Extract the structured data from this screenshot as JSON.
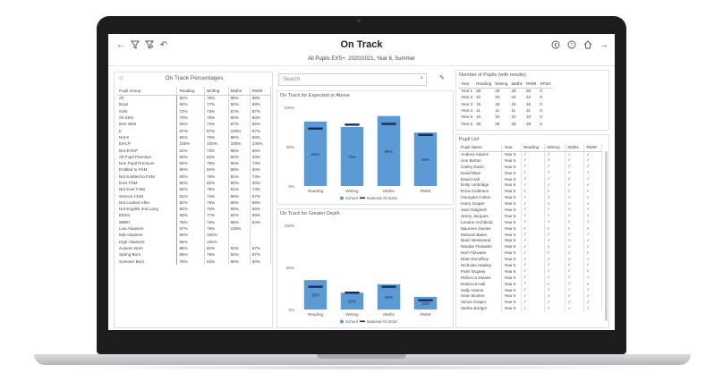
{
  "header": {
    "title": "On Track",
    "subtitle": "All Pupils EXS+, 2020/2021, Year 6, Summer",
    "icons_left": [
      "back-arrow-icon",
      "filter-icon",
      "filter-clear-icon",
      "undo-icon"
    ],
    "icons_right": [
      "previous-icon",
      "help-icon",
      "home-icon",
      "forward-arrow-icon"
    ]
  },
  "on_track": {
    "title": "On Track Percentages",
    "columns": [
      "Pupil Group",
      "Reading",
      "Writing",
      "Maths",
      "RWM"
    ],
    "rows": [
      [
        "All",
        "82%",
        "75%",
        "89%",
        "68%"
      ],
      [
        "Boys",
        "92%",
        "77%",
        "92%",
        "69%"
      ],
      [
        "Girls",
        "73%",
        "73%",
        "87%",
        "67%"
      ],
      [
        "All SEN",
        "70%",
        "70%",
        "80%",
        "60%"
      ],
      [
        "Non SEN",
        "83%",
        "74%",
        "87%",
        "65%"
      ],
      [
        "K",
        "67%",
        "67%",
        "100%",
        "67%"
      ],
      [
        "Not K",
        "84%",
        "76%",
        "88%",
        "68%"
      ],
      [
        "EHCP",
        "100%",
        "100%",
        "100%",
        "100%"
      ],
      [
        "Not EHCP",
        "81%",
        "73%",
        "88%",
        "65%"
      ],
      [
        "All Pupil Premium",
        "80%",
        "60%",
        "80%",
        "40%"
      ],
      [
        "Non Pupil Premium",
        "83%",
        "78%",
        "90%",
        "73%"
      ],
      [
        "Entitled to FSM",
        "80%",
        "60%",
        "80%",
        "40%"
      ],
      [
        "Not Entitled to FSM",
        "83%",
        "78%",
        "91%",
        "73%"
      ],
      [
        "Ever FSM",
        "80%",
        "60%",
        "80%",
        "40%"
      ],
      [
        "Not Ever FSM",
        "83%",
        "78%",
        "91%",
        "73%"
      ],
      [
        "Service Child",
        "81%",
        "74%",
        "89%",
        "67%"
      ],
      [
        "Not Looked After",
        "82%",
        "75%",
        "89%",
        "68%"
      ],
      [
        "Not English 2nd Lang",
        "82%",
        "75%",
        "89%",
        "68%"
      ],
      [
        "Ethnic",
        "93%",
        "77%",
        "92%",
        "69%"
      ],
      [
        "WBRI",
        "75%",
        "75%",
        "88%",
        "63%"
      ],
      [
        "Low Attainers",
        "67%",
        "78%",
        "100%",
        ""
      ],
      [
        "Mid Attainers",
        "95%",
        "100%",
        "",
        ""
      ],
      [
        "High Attainers",
        "86%",
        "100%",
        "",
        ""
      ],
      [
        "Autumn Born",
        "88%",
        "82%",
        "93%",
        "67%"
      ],
      [
        "Spring Born",
        "86%",
        "79%",
        "93%",
        "67%"
      ],
      [
        "Summer Born",
        "75%",
        "63%",
        "88%",
        "60%"
      ]
    ]
  },
  "search": {
    "placeholder": "Search"
  },
  "chart1": {
    "title": "On Track for Expected or Above",
    "yticks": [
      "100%",
      "50%",
      "0%"
    ],
    "legend_school": "School",
    "legend_national": "National All 2019"
  },
  "chart2": {
    "title": "On Track for Greater Depth",
    "yticks": [
      "100%",
      "50%",
      "0%"
    ],
    "legend_school": "School",
    "legend_national": "National All 2019"
  },
  "chart_data": [
    {
      "type": "bar",
      "title": "On Track for Expected or Above",
      "categories": [
        "Reading",
        "Writing",
        "Maths",
        "RWM"
      ],
      "series": [
        {
          "name": "School",
          "values": [
            82,
            75,
            89,
            68
          ]
        },
        {
          "name": "National All 2019",
          "values": [
            73,
            78,
            79,
            65
          ]
        }
      ],
      "data_labels": [
        "82%",
        "75%",
        "89%",
        "68%"
      ],
      "ylim": [
        0,
        100
      ],
      "colors": {
        "school": "#5b9bd5",
        "national": "#1f2a5a"
      }
    },
    {
      "type": "bar",
      "title": "On Track for Greater Depth",
      "categories": [
        "Reading",
        "Writing",
        "Maths",
        "RWM"
      ],
      "series": [
        {
          "name": "School",
          "values": [
            35,
            20,
            30,
            15
          ]
        },
        {
          "name": "National All 2019",
          "values": [
            27,
            20,
            27,
            11
          ]
        }
      ],
      "data_labels": [
        "35%",
        "20%",
        "30%",
        "15%"
      ],
      "ylim": [
        0,
        100
      ],
      "colors": {
        "school": "#5b9bd5",
        "national": "#1f2a5a"
      }
    }
  ],
  "num_pupils": {
    "title": "Number of Pupils (with results)",
    "columns": [
      "Year",
      "Reading",
      "Writing",
      "Maths",
      "RWM",
      "SPaG"
    ],
    "rows": [
      [
        "Year 1",
        "28",
        "28",
        "28",
        "28",
        "0"
      ],
      [
        "Year 2",
        "22",
        "22",
        "22",
        "22",
        "0"
      ],
      [
        "Year 3",
        "16",
        "16",
        "16",
        "16",
        "0"
      ],
      [
        "Year 4",
        "11",
        "11",
        "11",
        "11",
        "0"
      ],
      [
        "Year 5",
        "10",
        "10",
        "10",
        "10",
        "0"
      ],
      [
        "Year 6",
        "28",
        "28",
        "28",
        "28",
        "0"
      ]
    ]
  },
  "pupil_list": {
    "title": "Pupil List",
    "columns": [
      "Pupil Name",
      "Year",
      "Reading",
      "Writing",
      "Maths",
      "RWM"
    ],
    "rows": [
      [
        "Andrew Adams",
        "Year 6",
        "✓",
        "✓",
        "✓",
        "✓"
      ],
      [
        "Ann Button",
        "Year 6",
        "✓",
        "✓",
        "✓",
        "✓"
      ],
      [
        "Carley Dutto",
        "Year 6",
        "✓",
        "✓",
        "✓",
        "✓"
      ],
      [
        "David Blair",
        "Year 6",
        "✓",
        "✓",
        "✓",
        "✓"
      ],
      [
        "David Hall",
        "Year 6",
        "✓",
        "✓",
        "✓",
        "✓"
      ],
      [
        "Dolly Umbridge",
        "Year 6",
        "✓",
        "✓",
        "✓",
        "✓"
      ],
      [
        "Erica Anderson",
        "Year 6",
        "×",
        "×",
        "×",
        "×"
      ],
      [
        "Georgina Calton",
        "Year 6",
        "✓",
        "✓",
        "✓",
        "✓"
      ],
      [
        "Harry Draper",
        "Year 6",
        "✓",
        "✓",
        "✓",
        "✓"
      ],
      [
        "Jane Dalglesh",
        "Year 6",
        "✓",
        "✓",
        "✓",
        "✓"
      ],
      [
        "Jenny Jacques",
        "Year 6",
        "✓",
        "✓",
        "✓",
        "✓"
      ],
      [
        "Leeann Archibold",
        "Year 6",
        "✓",
        "✓",
        "✓",
        "✓"
      ],
      [
        "Maureen Davies",
        "Year 6",
        "×",
        "×",
        "×",
        "×"
      ],
      [
        "Melanie Baker",
        "Year 6",
        "✓",
        "✓",
        "✓",
        "✓"
      ],
      [
        "Niam Westwood",
        "Year 6",
        "✓",
        "✓",
        "✓",
        "✓"
      ],
      [
        "Narabe Fitzwater",
        "Year 6",
        "✓",
        "✓",
        "✓",
        "✓"
      ],
      [
        "Nerf Fitzwater",
        "Year 6",
        "✓",
        "×",
        "✓",
        "×"
      ],
      [
        "Niam Escoffrey",
        "Year 6",
        "✓",
        "✓",
        "✓",
        "✓"
      ],
      [
        "Nicholas Hawley",
        "Year 6",
        "✓",
        "✓",
        "✓",
        "✓"
      ],
      [
        "Paris Mcglew",
        "Year 6",
        "✓",
        "✓",
        "✓",
        "✓"
      ],
      [
        "Rebecca Davies",
        "Year 6",
        "✓",
        "✓",
        "✓",
        "✓"
      ],
      [
        "Rebecca Hall",
        "Year 6",
        "✓",
        "×",
        "✓",
        "×"
      ],
      [
        "Sally Adams",
        "Year 6",
        "✓",
        "✓",
        "✓",
        "✓"
      ],
      [
        "Sean Bunker",
        "Year 6",
        "✓",
        "✓",
        "✓",
        "✓"
      ],
      [
        "Simon Draper",
        "Year 6",
        "✓",
        "✓",
        "✓",
        "✓"
      ],
      [
        "Stefan Bridger",
        "Year 6",
        "✓",
        "✓",
        "✓",
        "✓"
      ]
    ]
  }
}
